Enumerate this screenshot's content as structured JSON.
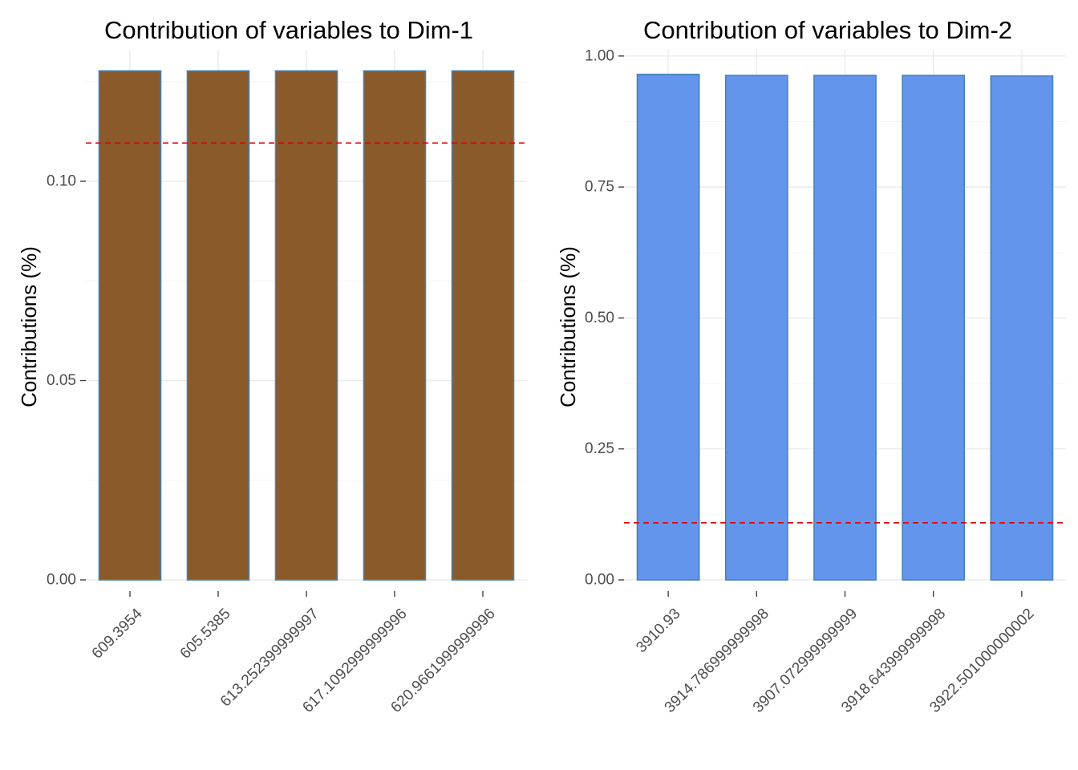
{
  "chart_data": [
    {
      "type": "bar",
      "title": "Contribution of variables to Dim-1",
      "xlabel": "",
      "ylabel": "Contributions (%)",
      "categories": [
        "609.3954",
        "605.5385",
        "613.252399999997",
        "617.1092999999996",
        "620.9661999999996"
      ],
      "values": [
        0.1277,
        0.1277,
        0.1277,
        0.1277,
        0.1277
      ],
      "ylim": [
        0,
        0.133
      ],
      "yticks": [
        0.0,
        0.05,
        0.1
      ],
      "ytick_labels": [
        "0.00",
        "0.05",
        "0.10"
      ],
      "reference_line": 0.1096,
      "grid": true,
      "colors": {
        "bar_fill": "#8B5A2B",
        "bar_outline": "#4682B4",
        "reference_line": "#DD0000"
      }
    },
    {
      "type": "bar",
      "title": "Contribution of variables to Dim-2",
      "xlabel": "",
      "ylabel": "Contributions (%)",
      "categories": [
        "3910.93",
        "3914.786999999998",
        "3907.072999999999",
        "3918.643999999998",
        "3922.501000000002"
      ],
      "values": [
        0.965,
        0.963,
        0.963,
        0.963,
        0.962
      ],
      "ylim": [
        0,
        1.012
      ],
      "yticks": [
        0.0,
        0.25,
        0.5,
        0.75,
        1.0
      ],
      "ytick_labels": [
        "0.00",
        "0.25",
        "0.50",
        "0.75",
        "1.00"
      ],
      "reference_line": 0.109,
      "grid": true,
      "colors": {
        "bar_fill": "#6495ED",
        "bar_outline": "#4682B4",
        "reference_line": "#DD0000"
      }
    }
  ]
}
